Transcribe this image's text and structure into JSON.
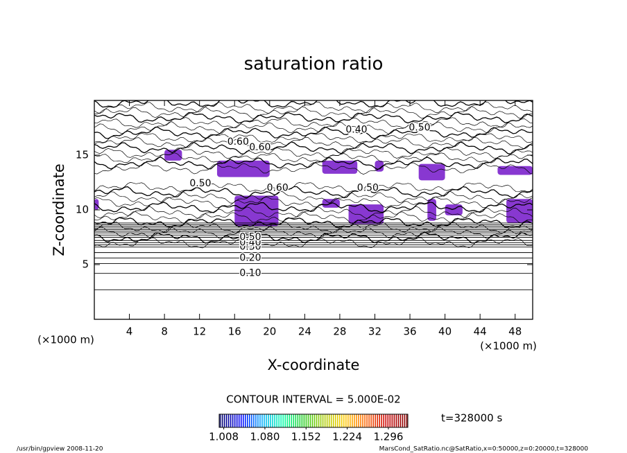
{
  "chart_data": {
    "type": "contour",
    "title": "saturation ratio",
    "xlabel": "X-coordinate",
    "ylabel": "Z-coordinate",
    "x_unit": "(×1000 m)",
    "y_unit": "(×1000 m)",
    "xlim": [
      0,
      50
    ],
    "ylim": [
      0,
      20
    ],
    "xticks": [
      4,
      8,
      12,
      16,
      20,
      24,
      28,
      32,
      36,
      40,
      44,
      48
    ],
    "yticks": [
      5,
      10,
      15
    ],
    "contour_interval": "CONTOUR INTERVAL = 5.000E-02",
    "time_label": "t=328000 s",
    "footer_left": "/usr/bin/gpview  2008-11-20",
    "footer_right": "MarsCond_SatRatio.nc@SatRatio,x=0:50000,z=0:20000,t=328000",
    "contours": [
      {
        "level": 0.05,
        "z": 2.7
      },
      {
        "level": 0.1,
        "z": 4.2
      },
      {
        "level": 0.15,
        "z": 5.1
      },
      {
        "level": 0.2,
        "z": 5.6
      },
      {
        "level": 0.25,
        "z": 6.1
      },
      {
        "level": 0.3,
        "z": 6.6
      },
      {
        "level": 0.35,
        "z": 6.8
      },
      {
        "level": 0.4,
        "z": 7.0
      },
      {
        "level": 0.45,
        "z": 7.2
      },
      {
        "level": 0.5,
        "z": 7.5
      },
      {
        "level": 0.55,
        "z": 7.7
      },
      {
        "level": 0.6,
        "z": 7.9
      },
      {
        "level": 0.65,
        "z": 8.05
      },
      {
        "level": 0.7,
        "z": 8.2
      },
      {
        "level": 0.75,
        "z": 8.35
      },
      {
        "level": 0.8,
        "z": 8.5
      },
      {
        "level": 0.85,
        "z": 8.65
      },
      {
        "level": 0.9,
        "z": 8.8
      }
    ],
    "contour_labels": [
      {
        "label": "0.10",
        "x": 17.8,
        "z": 4.2
      },
      {
        "label": "0.20",
        "x": 17.8,
        "z": 5.6
      },
      {
        "label": "0.30",
        "x": 17.8,
        "z": 6.6
      },
      {
        "label": "0.40",
        "x": 17.8,
        "z": 7.0
      },
      {
        "label": "0.50",
        "x": 17.8,
        "z": 7.5
      },
      {
        "label": "0.40",
        "x": 29.9,
        "z": 17.3
      },
      {
        "label": "0.50",
        "x": 37.1,
        "z": 17.5
      },
      {
        "label": "0.60",
        "x": 16.4,
        "z": 16.2
      },
      {
        "label": "0.60",
        "x": 18.9,
        "z": 15.7
      },
      {
        "label": "0.50",
        "x": 12.1,
        "z": 12.4
      },
      {
        "label": "0.60",
        "x": 20.9,
        "z": 12.0
      },
      {
        "label": "0.50",
        "x": 31.2,
        "z": 12.0
      }
    ],
    "shade_color": "#7b22cc",
    "shaded_regions": [
      [
        8,
        10,
        14.5,
        15.5
      ],
      [
        14,
        20,
        13,
        14.5
      ],
      [
        26,
        30,
        13.3,
        14.5
      ],
      [
        32,
        33,
        13.5,
        14.5
      ],
      [
        37,
        40,
        12.7,
        14.2
      ],
      [
        46,
        50,
        13.2,
        14
      ],
      [
        0,
        0.5,
        10,
        11
      ],
      [
        16,
        21,
        8.5,
        11.3
      ],
      [
        26,
        28,
        10.2,
        11
      ],
      [
        29,
        33,
        8.7,
        10.5
      ],
      [
        38,
        39,
        9,
        11
      ],
      [
        40,
        42,
        9.5,
        10.5
      ],
      [
        47,
        50,
        8.8,
        11
      ]
    ],
    "clim": [
      1.0,
      1.33
    ],
    "cticks": [
      1.008,
      {
        "value": 1.08,
        "label": "1.080"
      },
      1.152,
      1.224,
      1.296
    ],
    "colormap": [
      "#000066",
      "#0000ff",
      "#00aaff",
      "#00ffaa",
      "#22cc22",
      "#aacc00",
      "#ffcc00",
      "#ff6600",
      "#cc0000",
      "#880000"
    ]
  }
}
